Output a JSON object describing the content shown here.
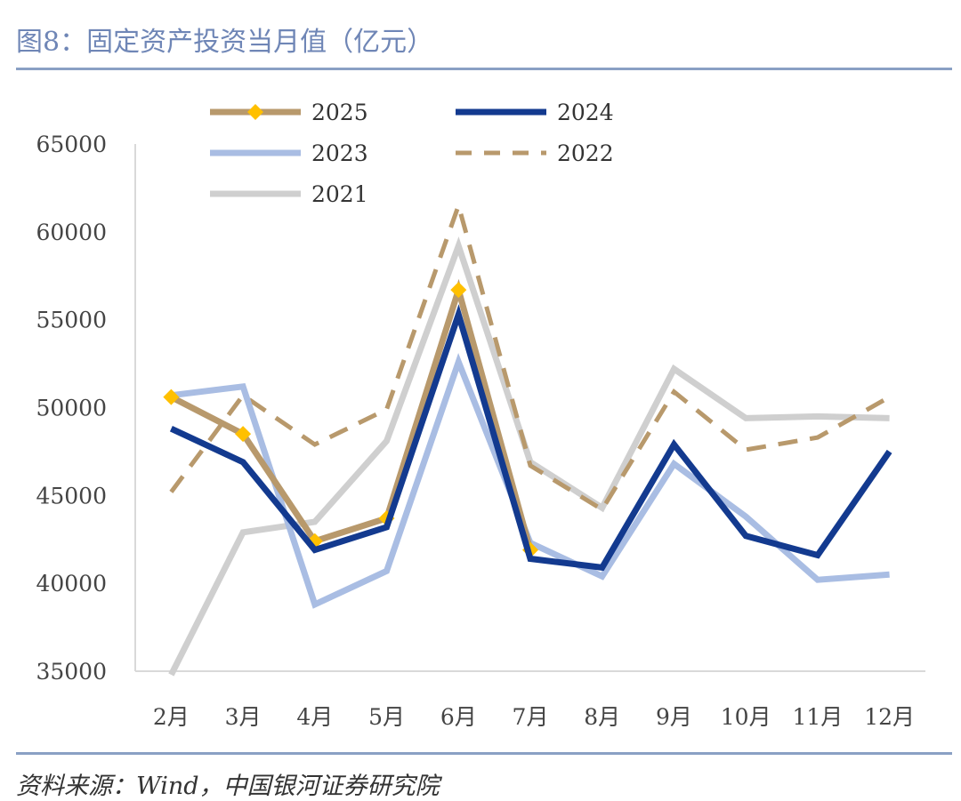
{
  "title": "图8：固定资产投资当月值（亿元）",
  "source": "资料来源：Wind，中国银河证券研究院",
  "chart_data": {
    "type": "line",
    "title": "图8：固定资产投资当月值（亿元）",
    "xlabel": "",
    "ylabel": "",
    "categories": [
      "2月",
      "3月",
      "4月",
      "5月",
      "6月",
      "7月",
      "8月",
      "9月",
      "10月",
      "11月",
      "12月"
    ],
    "ylim": [
      35000,
      65000
    ],
    "yticks": [
      35000,
      40000,
      45000,
      50000,
      55000,
      60000,
      65000
    ],
    "grid": false,
    "legend_position": "top",
    "series": [
      {
        "name": "2025",
        "color": "#b8996c",
        "style": "solid-marker",
        "marker_color": "#ffc000",
        "values": [
          50600,
          48500,
          42400,
          43700,
          56700,
          41900,
          null,
          null,
          null,
          null,
          null
        ]
      },
      {
        "name": "2024",
        "color": "#133a8f",
        "style": "solid",
        "values": [
          48800,
          46900,
          41900,
          43200,
          55300,
          41400,
          40900,
          47900,
          42700,
          41600,
          47500
        ]
      },
      {
        "name": "2023",
        "color": "#a9bde3",
        "style": "solid",
        "values": [
          50700,
          51200,
          38800,
          40700,
          52600,
          42300,
          40400,
          46800,
          43800,
          40200,
          40500
        ]
      },
      {
        "name": "2022",
        "color": "#b8996c",
        "style": "dashed",
        "values": [
          45200,
          50700,
          47900,
          49900,
          61500,
          46700,
          44200,
          50900,
          47600,
          48300,
          50600
        ]
      },
      {
        "name": "2021",
        "color": "#cfcfcf",
        "style": "solid",
        "values": [
          34800,
          42900,
          43500,
          48100,
          59200,
          46900,
          44300,
          52200,
          49400,
          49500,
          49400
        ]
      }
    ]
  }
}
